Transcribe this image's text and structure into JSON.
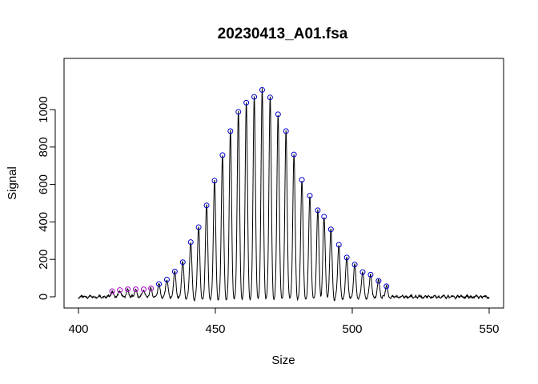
{
  "chart_data": {
    "type": "line",
    "title": "20230413_A01.fsa",
    "xlabel": "Size",
    "ylabel": "Signal",
    "xlim": [
      400,
      550
    ],
    "ylim": [
      -10,
      1125
    ],
    "xticks": [
      "400",
      "450",
      "500",
      "550"
    ],
    "yticks": [
      "0",
      "200",
      "400",
      "600",
      "800",
      "1000"
    ],
    "grid": false,
    "legend": "none",
    "colors": {
      "line": "#000000",
      "peak_marker": "#0000cc",
      "minor_marker": "#aa00cc"
    },
    "peaks": [
      {
        "x": 412.3,
        "y": 30,
        "type": "minor"
      },
      {
        "x": 415.1,
        "y": 36,
        "type": "minor"
      },
      {
        "x": 418.0,
        "y": 40,
        "type": "minor"
      },
      {
        "x": 420.9,
        "y": 40,
        "type": "minor"
      },
      {
        "x": 423.8,
        "y": 40,
        "type": "minor"
      },
      {
        "x": 426.5,
        "y": 45,
        "type": "minor"
      },
      {
        "x": 429.4,
        "y": 68,
        "type": "major"
      },
      {
        "x": 432.3,
        "y": 92,
        "type": "major"
      },
      {
        "x": 435.2,
        "y": 135,
        "type": "major"
      },
      {
        "x": 438.1,
        "y": 185,
        "type": "major"
      },
      {
        "x": 441.0,
        "y": 292,
        "type": "major"
      },
      {
        "x": 443.9,
        "y": 372,
        "type": "major"
      },
      {
        "x": 446.8,
        "y": 488,
        "type": "major"
      },
      {
        "x": 449.7,
        "y": 620,
        "type": "major"
      },
      {
        "x": 452.6,
        "y": 757,
        "type": "major"
      },
      {
        "x": 455.5,
        "y": 885,
        "type": "major"
      },
      {
        "x": 458.4,
        "y": 988,
        "type": "major"
      },
      {
        "x": 461.3,
        "y": 1037,
        "type": "major"
      },
      {
        "x": 464.2,
        "y": 1068,
        "type": "major"
      },
      {
        "x": 467.1,
        "y": 1105,
        "type": "major"
      },
      {
        "x": 470.0,
        "y": 1065,
        "type": "major"
      },
      {
        "x": 472.9,
        "y": 975,
        "type": "major"
      },
      {
        "x": 475.8,
        "y": 885,
        "type": "major"
      },
      {
        "x": 478.7,
        "y": 760,
        "type": "major"
      },
      {
        "x": 481.6,
        "y": 625,
        "type": "major"
      },
      {
        "x": 484.5,
        "y": 540,
        "type": "major"
      },
      {
        "x": 487.4,
        "y": 462,
        "type": "major"
      },
      {
        "x": 489.7,
        "y": 428,
        "type": "major"
      },
      {
        "x": 492.2,
        "y": 360,
        "type": "major"
      },
      {
        "x": 495.1,
        "y": 278,
        "type": "major"
      },
      {
        "x": 498.0,
        "y": 210,
        "type": "major"
      },
      {
        "x": 500.9,
        "y": 172,
        "type": "major"
      },
      {
        "x": 503.8,
        "y": 132,
        "type": "major"
      },
      {
        "x": 506.7,
        "y": 118,
        "type": "major"
      },
      {
        "x": 509.6,
        "y": 85,
        "type": "major"
      },
      {
        "x": 512.5,
        "y": 56,
        "type": "major"
      }
    ]
  }
}
